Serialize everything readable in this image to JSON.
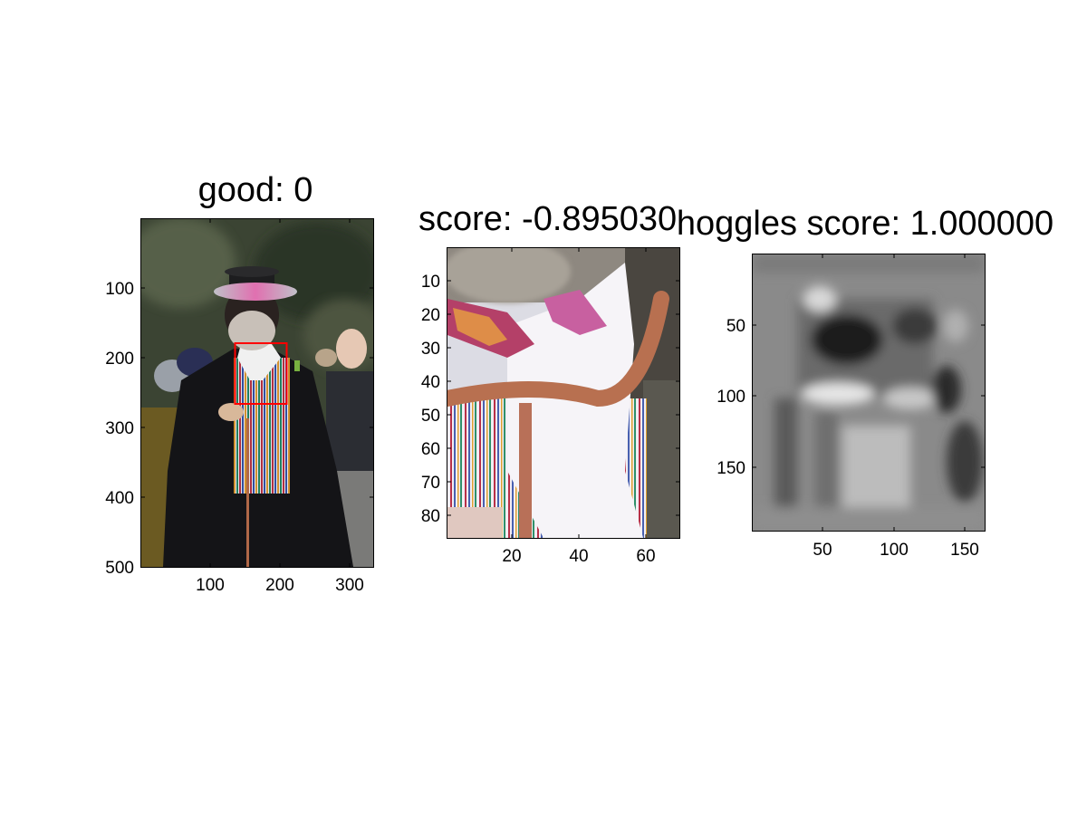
{
  "chart_data": [
    {
      "type": "image",
      "title": "good: 0",
      "xticks": [
        100,
        200,
        300
      ],
      "yticks": [
        100,
        200,
        300,
        400,
        500
      ],
      "xlim": [
        0,
        333
      ],
      "ylim": [
        0,
        500
      ],
      "annotation": {
        "type": "rectangle",
        "color": "#ff0000",
        "x": [
          135,
          210
        ],
        "y": [
          178,
          265
        ]
      }
    },
    {
      "type": "image",
      "title": "score: -0.895030",
      "xticks": [
        20,
        40,
        60
      ],
      "yticks": [
        10,
        20,
        30,
        40,
        50,
        60,
        70,
        80
      ],
      "xlim": [
        0,
        70
      ],
      "ylim": [
        0,
        87
      ]
    },
    {
      "type": "heatmap",
      "title": "hoggles score: 1.000000",
      "colormap": "gray",
      "xticks": [
        50,
        100,
        150
      ],
      "yticks": [
        50,
        100,
        150
      ],
      "xlim": [
        0,
        164
      ],
      "ylim": [
        0,
        195
      ]
    }
  ]
}
